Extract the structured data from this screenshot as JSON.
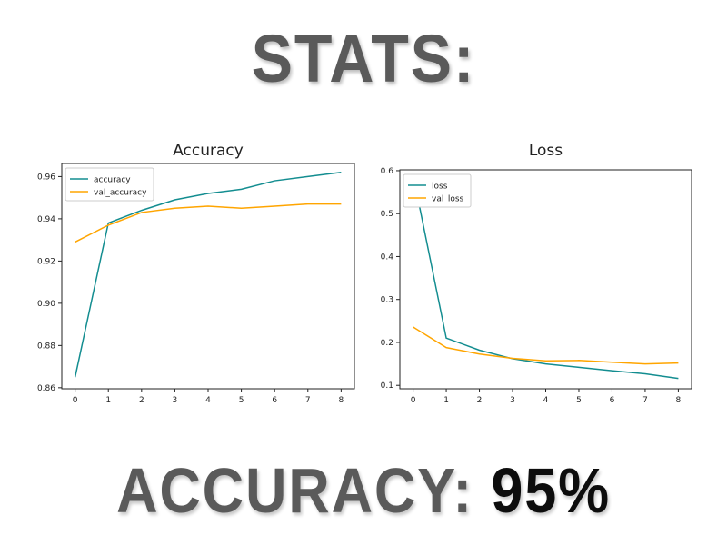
{
  "header": {
    "title": "STATS:"
  },
  "footer": {
    "label": "ACCURACY:",
    "value": "95%"
  },
  "colors": {
    "train": "#138d90",
    "val": "#ffa500",
    "headline": "#5a5a5a",
    "value": "#0d0d0d"
  },
  "chart_data": [
    {
      "type": "line",
      "title": "Accuracy",
      "xlabel": "",
      "ylabel": "",
      "x": [
        0,
        1,
        2,
        3,
        4,
        5,
        6,
        7,
        8
      ],
      "xticks": [
        "0",
        "1",
        "2",
        "3",
        "4",
        "5",
        "6",
        "7",
        "8"
      ],
      "yticks": [
        "0.86",
        "0.88",
        "0.90",
        "0.92",
        "0.94",
        "0.96"
      ],
      "ylim": [
        0.8595,
        0.9662
      ],
      "xlim": [
        -0.4,
        8.4
      ],
      "legend": "upper-left",
      "grid": false,
      "series": [
        {
          "name": "accuracy",
          "color": "#138d90",
          "values": [
            0.865,
            0.938,
            0.944,
            0.949,
            0.952,
            0.954,
            0.958,
            0.96,
            0.962
          ]
        },
        {
          "name": "val_accuracy",
          "color": "#ffa500",
          "values": [
            0.929,
            0.937,
            0.943,
            0.945,
            0.946,
            0.945,
            0.946,
            0.947,
            0.947
          ]
        }
      ]
    },
    {
      "type": "line",
      "title": "Loss",
      "xlabel": "",
      "ylabel": "",
      "x": [
        0,
        1,
        2,
        3,
        4,
        5,
        6,
        7,
        8
      ],
      "xticks": [
        "0",
        "1",
        "2",
        "3",
        "4",
        "5",
        "6",
        "7",
        "8"
      ],
      "yticks": [
        "0.1",
        "0.2",
        "0.3",
        "0.4",
        "0.5",
        "0.6"
      ],
      "ylim": [
        0.092,
        0.602
      ],
      "xlim": [
        -0.4,
        8.4
      ],
      "legend": "upper-left",
      "grid": false,
      "series": [
        {
          "name": "loss",
          "color": "#138d90",
          "values": [
            0.59,
            0.21,
            0.182,
            0.162,
            0.15,
            0.142,
            0.134,
            0.127,
            0.116
          ]
        },
        {
          "name": "val_loss",
          "color": "#ffa500",
          "values": [
            0.236,
            0.188,
            0.173,
            0.163,
            0.157,
            0.158,
            0.154,
            0.15,
            0.152
          ]
        }
      ]
    }
  ]
}
